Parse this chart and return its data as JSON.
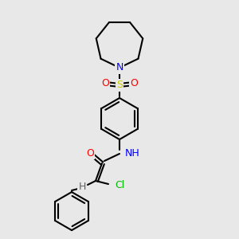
{
  "background_color": "#e8e8e8",
  "bond_color": "#000000",
  "bond_lw": 1.5,
  "atom_colors": {
    "N": "#0000ff",
    "O": "#ff0000",
    "S": "#cccc00",
    "Cl": "#00bb00",
    "H_gray": "#606060"
  },
  "font_size_atoms": 9,
  "font_size_small": 7.5
}
